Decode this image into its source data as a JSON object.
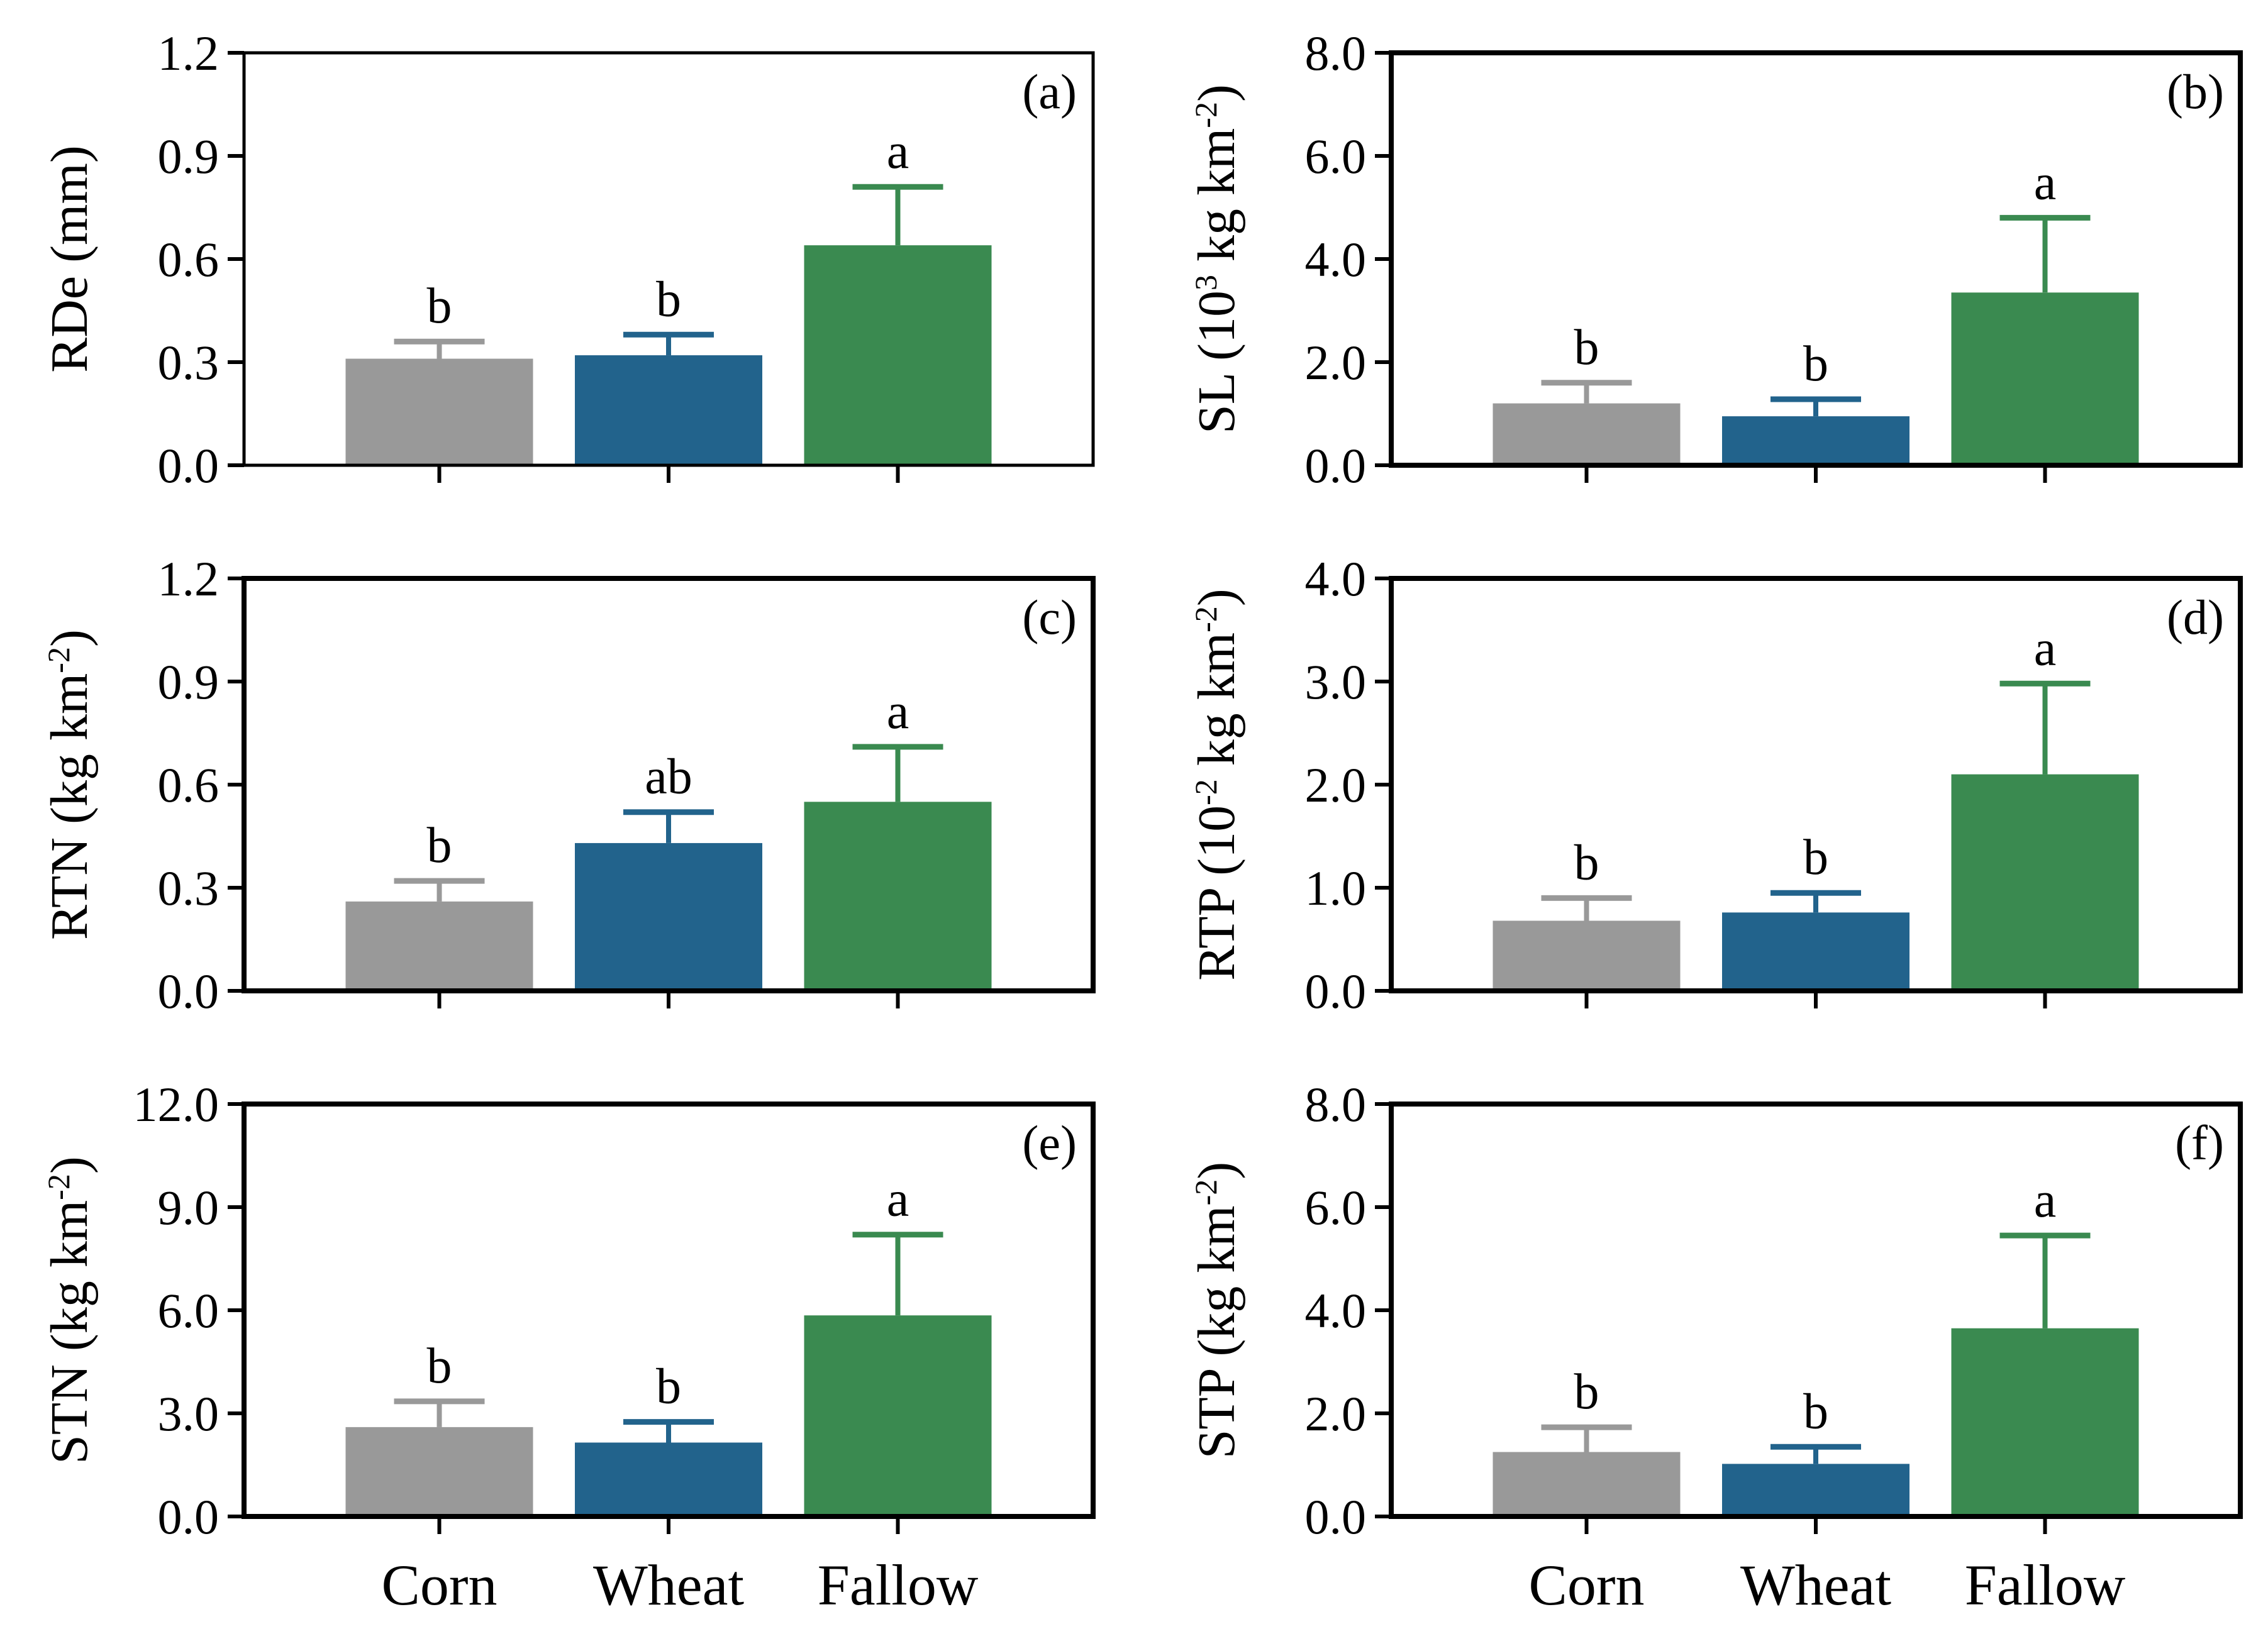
{
  "figure": {
    "categories": [
      "Corn",
      "Wheat",
      "Fallow"
    ],
    "colors": {
      "Corn": "#999999",
      "Wheat": "#22638c",
      "Fallow": "#3a8a50",
      "axis": "#000000"
    }
  },
  "chart_data": [
    {
      "type": "bar",
      "panel": "(a)",
      "ylabel": {
        "main": "RDe (mm)"
      },
      "categories": [
        "Corn",
        "Wheat",
        "Fallow"
      ],
      "values": [
        0.31,
        0.32,
        0.64
      ],
      "errors": [
        0.05,
        0.06,
        0.17
      ],
      "letters": [
        "b",
        "b",
        "a"
      ],
      "ylim": [
        0,
        1.2
      ],
      "yticks": [
        "0.0",
        "0.3",
        "0.6",
        "0.9",
        "1.2"
      ]
    },
    {
      "type": "bar",
      "panel": "(b)",
      "ylabel": {
        "main": "SL (10",
        "sup": "3",
        "rest": " kg km",
        "sup2": "-2",
        "end": ")"
      },
      "categories": [
        "Corn",
        "Wheat",
        "Fallow"
      ],
      "values": [
        1.2,
        0.95,
        3.35
      ],
      "errors": [
        0.4,
        0.33,
        1.45
      ],
      "letters": [
        "b",
        "b",
        "a"
      ],
      "ylim": [
        0,
        8.0
      ],
      "yticks": [
        "0.0",
        "2.0",
        "4.0",
        "6.0",
        "8.0"
      ]
    },
    {
      "type": "bar",
      "panel": "(c)",
      "ylabel": {
        "main": "RTN (kg km",
        "sup": "-2",
        "end": ")"
      },
      "categories": [
        "Corn",
        "Wheat",
        "Fallow"
      ],
      "values": [
        0.26,
        0.43,
        0.55
      ],
      "errors": [
        0.06,
        0.09,
        0.16
      ],
      "letters": [
        "b",
        "ab",
        "a"
      ],
      "ylim": [
        0,
        1.2
      ],
      "yticks": [
        "0.0",
        "0.3",
        "0.6",
        "0.9",
        "1.2"
      ]
    },
    {
      "type": "bar",
      "panel": "(d)",
      "ylabel": {
        "main": "RTP (10",
        "sup": "-2",
        "rest": " kg km",
        "sup2": "-2",
        "end": ")"
      },
      "categories": [
        "Corn",
        "Wheat",
        "Fallow"
      ],
      "values": [
        0.68,
        0.76,
        2.1
      ],
      "errors": [
        0.22,
        0.19,
        0.88
      ],
      "letters": [
        "b",
        "b",
        "a"
      ],
      "ylim": [
        0,
        4.0
      ],
      "yticks": [
        "0.0",
        "1.0",
        "2.0",
        "3.0",
        "4.0"
      ]
    },
    {
      "type": "bar",
      "panel": "(e)",
      "ylabel": {
        "main": "STN (kg km",
        "sup": "-2",
        "end": ")"
      },
      "categories": [
        "Corn",
        "Wheat",
        "Fallow"
      ],
      "values": [
        2.6,
        2.15,
        5.85
      ],
      "errors": [
        0.75,
        0.6,
        2.35
      ],
      "letters": [
        "b",
        "b",
        "a"
      ],
      "ylim": [
        0,
        12.0
      ],
      "yticks": [
        "0.0",
        "3.0",
        "6.0",
        "9.0",
        "12.0"
      ]
    },
    {
      "type": "bar",
      "panel": "(f)",
      "ylabel": {
        "main": "STP (kg km",
        "sup": "-2",
        "end": ")"
      },
      "categories": [
        "Corn",
        "Wheat",
        "Fallow"
      ],
      "values": [
        1.25,
        1.02,
        3.65
      ],
      "errors": [
        0.48,
        0.33,
        1.8
      ],
      "letters": [
        "b",
        "b",
        "a"
      ],
      "ylim": [
        0,
        8.0
      ],
      "yticks": [
        "0.0",
        "2.0",
        "4.0",
        "6.0",
        "8.0"
      ]
    }
  ]
}
